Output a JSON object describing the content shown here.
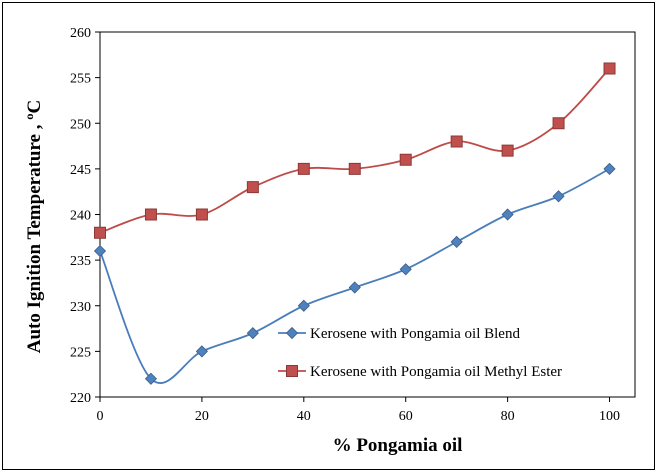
{
  "chart_data": {
    "type": "line",
    "title": "",
    "xlabel": "% Pongamia oil",
    "ylabel": "Auto Ignition  Temperature , ºC",
    "xlim": [
      0,
      105
    ],
    "ylim": [
      220,
      260
    ],
    "xticks": [
      0,
      20,
      40,
      60,
      80,
      100
    ],
    "yticks": [
      220,
      225,
      230,
      235,
      240,
      245,
      250,
      255,
      260
    ],
    "grid": false,
    "legend_position": "bottom-right",
    "smooth": true,
    "series": [
      {
        "name": "Kerosene with Pongamia oil Blend",
        "marker": "diamond",
        "line_color": "#4a7ebb",
        "marker_color": "#4f81bd",
        "x": [
          0,
          10,
          20,
          30,
          40,
          50,
          60,
          70,
          80,
          90,
          100
        ],
        "y": [
          236,
          222,
          225,
          227,
          230,
          232,
          234,
          237,
          240,
          242,
          245
        ]
      },
      {
        "name": "Kerosene with Pongamia oil Methyl Ester",
        "marker": "square",
        "line_color": "#be4b48",
        "marker_color": "#c0504d",
        "x": [
          0,
          10,
          20,
          30,
          40,
          50,
          60,
          70,
          80,
          90,
          100
        ],
        "y": [
          238,
          240,
          240,
          243,
          245,
          245,
          246,
          248,
          247,
          250,
          256
        ]
      }
    ]
  }
}
